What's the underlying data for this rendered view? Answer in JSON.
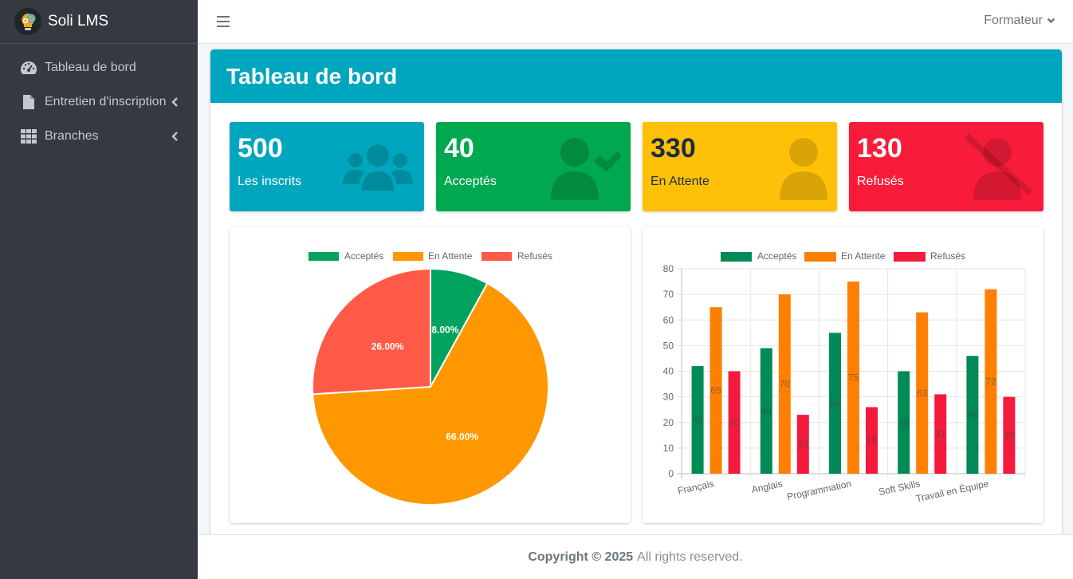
{
  "brand": {
    "name": "Soli LMS"
  },
  "sidebar": {
    "items": [
      {
        "label": "Tableau de bord",
        "icon": "dashboard-gauge-icon"
      },
      {
        "label": "Entretien d'inscription",
        "icon": "file-icon"
      },
      {
        "label": "Branches",
        "icon": "grid-icon"
      }
    ]
  },
  "navbar": {
    "user_label": "Formateur"
  },
  "header": {
    "title": "Tableau de bord"
  },
  "stats": [
    {
      "value": "500",
      "label": "Les inscrits",
      "color": "#00a6bd",
      "icon": "users-icon"
    },
    {
      "value": "40",
      "label": "Acceptés",
      "color": "#00a84f",
      "icon": "user-check-icon"
    },
    {
      "value": "330",
      "label": "En Attente",
      "color": "#ffc107",
      "icon": "user-icon"
    },
    {
      "value": "130",
      "label": "Refusés",
      "color": "#f81c3a",
      "icon": "user-slash-icon"
    }
  ],
  "chart_data": [
    {
      "type": "pie",
      "legend": [
        "Acceptés",
        "En Attente",
        "Refusés"
      ],
      "legend_position": "top",
      "values": [
        8.0,
        66.0,
        26.0
      ],
      "slice_labels": [
        "8.00%",
        "66.00%",
        "26.00%"
      ],
      "colors": [
        "#00a25e",
        "#ff9800",
        "#ff5a47"
      ]
    },
    {
      "type": "bar",
      "legend_position": "top",
      "categories": [
        "Français",
        "Anglais",
        "Programmation",
        "Soft Skills",
        "Travail en Équipe"
      ],
      "series": [
        {
          "name": "Acceptés",
          "color": "#008a55",
          "values": [
            42,
            49,
            55,
            40,
            46
          ]
        },
        {
          "name": "En Attente",
          "color": "#ff7f00",
          "values": [
            65,
            70,
            75,
            63,
            72
          ]
        },
        {
          "name": "Refusés",
          "color": "#f41a3c",
          "values": [
            40,
            23,
            26,
            31,
            30
          ]
        }
      ],
      "ylim": [
        0,
        80
      ],
      "yticks": [
        0,
        10,
        20,
        30,
        40,
        50,
        60,
        70,
        80
      ],
      "grid": true
    }
  ],
  "footer": {
    "copyright": "Copyright © 2025",
    "rights": "All rights reserved."
  }
}
